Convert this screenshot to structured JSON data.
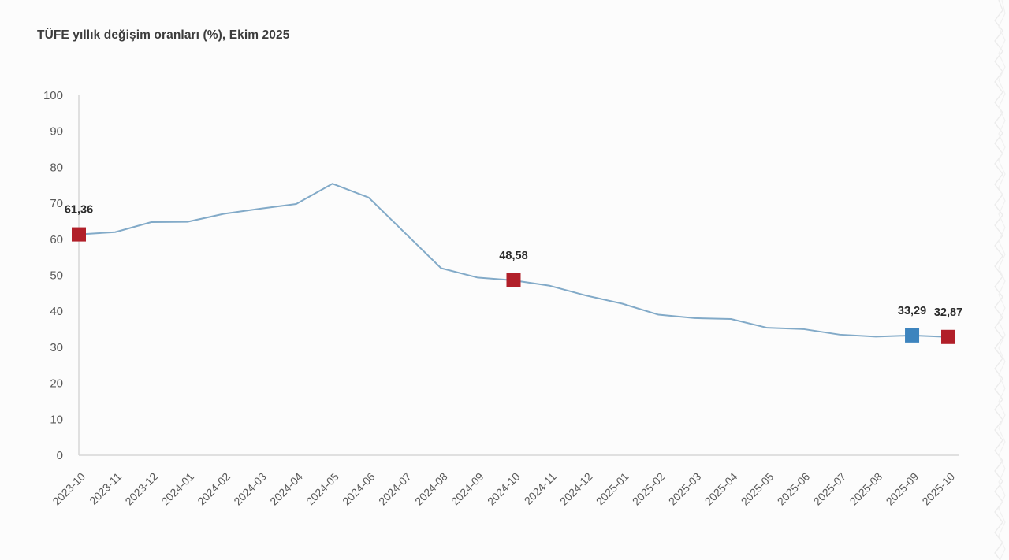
{
  "chart": {
    "title": "TÜFE yıllık değişim oranları (%), Ekim 2025"
  },
  "chart_data": {
    "type": "line",
    "title": "TÜFE yıllık değişim oranları (%), Ekim 2025",
    "xlabel": "",
    "ylabel": "",
    "x": [
      "2023-10",
      "2023-11",
      "2023-12",
      "2024-01",
      "2024-02",
      "2024-03",
      "2024-04",
      "2024-05",
      "2024-06",
      "2024-07",
      "2024-08",
      "2024-09",
      "2024-10",
      "2024-11",
      "2024-12",
      "2025-01",
      "2025-02",
      "2025-03",
      "2025-04",
      "2025-05",
      "2025-06",
      "2025-07",
      "2025-08",
      "2025-09",
      "2025-10"
    ],
    "values": [
      61.36,
      61.98,
      64.77,
      64.86,
      67.07,
      68.5,
      69.8,
      75.45,
      71.6,
      61.78,
      51.97,
      49.38,
      48.58,
      47.09,
      44.38,
      42.12,
      39.05,
      38.1,
      37.86,
      35.41,
      35.05,
      33.52,
      32.95,
      33.29,
      32.87
    ],
    "ylim": [
      0,
      100
    ],
    "yticks": [
      0,
      10,
      20,
      30,
      40,
      50,
      60,
      70,
      80,
      90,
      100
    ],
    "grid": false,
    "legend": "none",
    "line_color": "#82aac8",
    "axis_color": "#d7d7d7",
    "tick_color": "#595959",
    "label_color": "#2b2b2b",
    "marked_points": [
      {
        "index": 0,
        "x": "2023-10",
        "value": 61.36,
        "label": "61,36",
        "color": "#b11f29"
      },
      {
        "index": 12,
        "x": "2024-10",
        "value": 48.58,
        "label": "48,58",
        "color": "#b11f29"
      },
      {
        "index": 23,
        "x": "2025-09",
        "value": 33.29,
        "label": "33,29",
        "color": "#3d84be"
      },
      {
        "index": 24,
        "x": "2025-10",
        "value": 32.87,
        "label": "32,87",
        "color": "#b11f29"
      }
    ]
  }
}
